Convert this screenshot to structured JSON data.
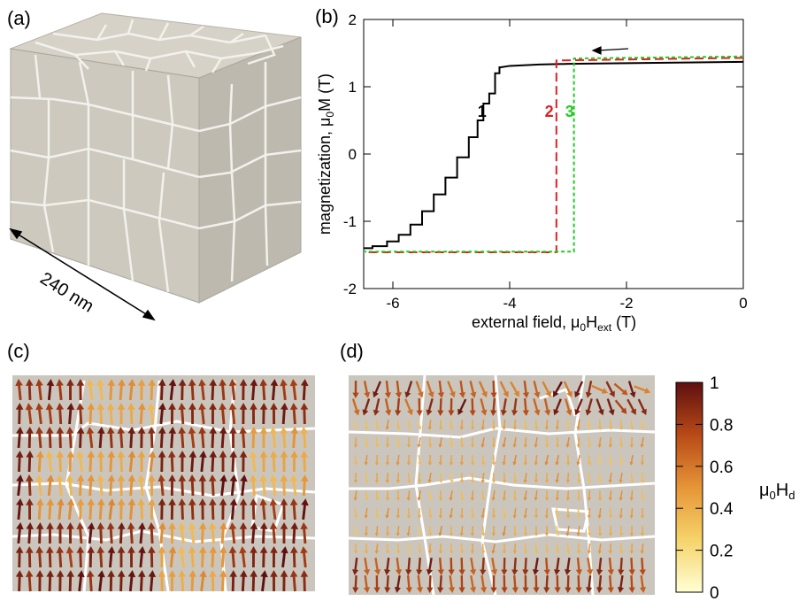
{
  "panels": {
    "a": "(a)",
    "b": "(b)",
    "c": "(c)",
    "d": "(d)"
  },
  "cube": {
    "scale_label": "240 nm",
    "face_color": "#cdc8bd"
  },
  "chart_data": {
    "type": "line",
    "xlabel": "external field, μ0Hext (T)",
    "ylabel": "magnetization, μ0M (T)",
    "xlim": [
      -6.5,
      0
    ],
    "ylim": [
      -2,
      2
    ],
    "x_ticks": [
      "-6",
      "-4",
      "-2",
      "0"
    ],
    "y_ticks": [
      "-2",
      "-1",
      "0",
      "1",
      "2"
    ],
    "grid": false,
    "sweep_direction": "decreasing field",
    "series": [
      {
        "label": "1",
        "color": "#000000",
        "dash": "solid",
        "x": [
          0,
          -1,
          -2,
          -3,
          -3.5,
          -4,
          -4.15,
          -4.2,
          -4.3,
          -4.4,
          -4.5,
          -4.6,
          -4.8,
          -5.0,
          -5.2,
          -5.4,
          -5.6,
          -5.8,
          -6.0,
          -6.2,
          -6.5
        ],
        "y": [
          1.37,
          1.36,
          1.35,
          1.34,
          1.33,
          1.31,
          1.29,
          1.2,
          0.9,
          0.75,
          0.5,
          0.25,
          -0.05,
          -0.35,
          -0.6,
          -0.85,
          -1.05,
          -1.2,
          -1.3,
          -1.37,
          -1.4
        ]
      },
      {
        "label": "2",
        "color": "#e02020",
        "dash": "long-dash",
        "x": [
          0,
          -3.2,
          -3.2,
          -6.5
        ],
        "y": [
          1.43,
          1.39,
          -1.46,
          -1.46
        ]
      },
      {
        "label": "3",
        "color": "#22cc22",
        "dash": "dotted",
        "x": [
          0,
          -2.9,
          -2.9,
          -6.5
        ],
        "y": [
          1.45,
          1.42,
          -1.45,
          -1.45
        ]
      }
    ]
  },
  "colorbar": {
    "label": "μ0Hd",
    "ticks": [
      "1",
      "0.8",
      "0.6",
      "0.4",
      "0.2",
      "0"
    ],
    "range": [
      0,
      1
    ]
  }
}
